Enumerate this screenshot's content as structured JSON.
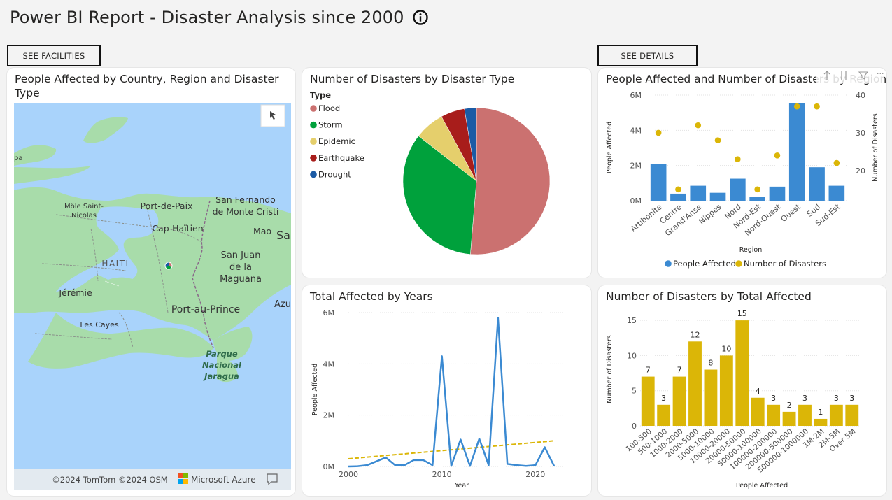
{
  "page": {
    "title": "Power BI Report - Disaster Analysis since 2000"
  },
  "nav": {
    "facilities_label": "SEE FACILITIES",
    "details_label": "SEE DETAILS"
  },
  "map_card": {
    "title": "People Affected by Country, Region and Disaster Type",
    "labels": {
      "pa": "pa",
      "mole": "Môle Saint-\nNicolas",
      "portdepaix": "Port-de-Paix",
      "sanfernando": "San Fernando\nde Monte Cristi",
      "caphaitien": "Cap-Haïtien",
      "mao": "Mao",
      "sa": "Sa",
      "haiti": "HAITI",
      "sanjuan": "San Juan\nde la\nMaguana",
      "jeremie": "Jérémie",
      "portauprince": "Port-au-Prince",
      "azu": "Azu",
      "lescayes": "Les Cayes",
      "parque": "Parque\nNacional\nJaragua"
    },
    "copyright": "©2024 TomTom ©2024 OSM",
    "azure": "Microsoft Azure",
    "colors": {
      "water": "#a9d3fb",
      "land": "#a8dcaa",
      "land_dark": "#95cf9a"
    }
  },
  "pie_card": {
    "title": "Number of Disasters by Disaster Type",
    "legend_title": "Type",
    "chart_data": {
      "type": "pie",
      "title": "Number of Disasters by Disaster Type",
      "legend_title": "Type",
      "categories": [
        "Flood",
        "Storm",
        "Epidemic",
        "Earthquake",
        "Drought"
      ],
      "values": [
        39,
        26,
        5,
        4,
        2
      ],
      "colors": [
        "#cb7170",
        "#00a13c",
        "#e5cf6c",
        "#a81d1b",
        "#1b5ba5"
      ]
    }
  },
  "combo_card": {
    "title": "People Affected and Number of Disasters by Region",
    "chart_data": {
      "type": "bar",
      "title": "People Affected and Number of Disasters by Region",
      "categories": [
        "Artibonite",
        "Centre",
        "Grand'Anse",
        "Nippes",
        "Nord",
        "Nord-Est",
        "Nord-Ouest",
        "Ouest",
        "Sud",
        "Sud-Est"
      ],
      "series": [
        {
          "name": "People Affected",
          "type": "bar",
          "axis": "left",
          "color": "#3b8ad2",
          "values": [
            2100000,
            400000,
            850000,
            450000,
            1250000,
            200000,
            800000,
            5550000,
            1900000,
            850000
          ]
        },
        {
          "name": "Number of Disasters",
          "type": "scatter",
          "axis": "right",
          "color": "#dbb607",
          "values": [
            30,
            15,
            32,
            28,
            23,
            15,
            24,
            37,
            37,
            22
          ]
        }
      ],
      "xlabel": "Region",
      "ylabel": "People Affected",
      "y2label": "Number of Disasters",
      "ylim": [
        0,
        6000000
      ],
      "y2lim": [
        12,
        40
      ],
      "yticks": [
        "6M",
        "4M",
        "2M",
        "0M"
      ],
      "y2ticks": [
        "40",
        "30",
        "20"
      ]
    }
  },
  "line_card": {
    "title": "Total Affected by Years",
    "chart_data": {
      "type": "line",
      "title": "Total Affected by Years",
      "x": [
        2000,
        2001,
        2002,
        2003,
        2004,
        2005,
        2006,
        2007,
        2008,
        2009,
        2010,
        2011,
        2012,
        2013,
        2014,
        2015,
        2016,
        2017,
        2018,
        2019,
        2020,
        2021,
        2022
      ],
      "values": [
        0,
        10000,
        50000,
        200000,
        350000,
        50000,
        50000,
        250000,
        250000,
        50000,
        4300000,
        20000,
        1050000,
        20000,
        1080000,
        50000,
        5800000,
        100000,
        50000,
        20000,
        50000,
        750000,
        20000
      ],
      "trend": [
        300000,
        1000000
      ],
      "xlabel": "Year",
      "ylabel": "People Affected",
      "ylim": [
        0,
        6000000
      ],
      "xticks": [
        "2000",
        "2010",
        "2020"
      ],
      "yticks": [
        "6M",
        "4M",
        "2M",
        "0M"
      ],
      "line_color": "#3b8ad2",
      "trend_color": "#dbb607"
    }
  },
  "hist_card": {
    "title": "Number of Disasters by Total Affected",
    "chart_data": {
      "type": "bar",
      "title": "Number of Disasters by Total Affected",
      "categories": [
        "100-500",
        "500-1000",
        "1000-2000",
        "2000-5000",
        "5000-10000",
        "10000-20000",
        "20000-50000",
        "50000-100000",
        "100000-200000",
        "200000-500000",
        "500000-1000000",
        "1M-2M",
        "2M-5M",
        "Over 5M"
      ],
      "values": [
        7,
        3,
        7,
        12,
        8,
        10,
        15,
        4,
        3,
        2,
        3,
        1,
        3,
        3
      ],
      "data_labels": [
        "7",
        "3",
        "7",
        "12",
        "8",
        "10",
        "15",
        "4",
        "3",
        "2",
        "3",
        "1",
        "3",
        "3"
      ],
      "xlabel": "People Affected",
      "ylabel": "Number of Disasters",
      "ylim": [
        0,
        17
      ],
      "yticks": [
        "15",
        "10",
        "5",
        "0"
      ],
      "color": "#dbb607"
    }
  }
}
